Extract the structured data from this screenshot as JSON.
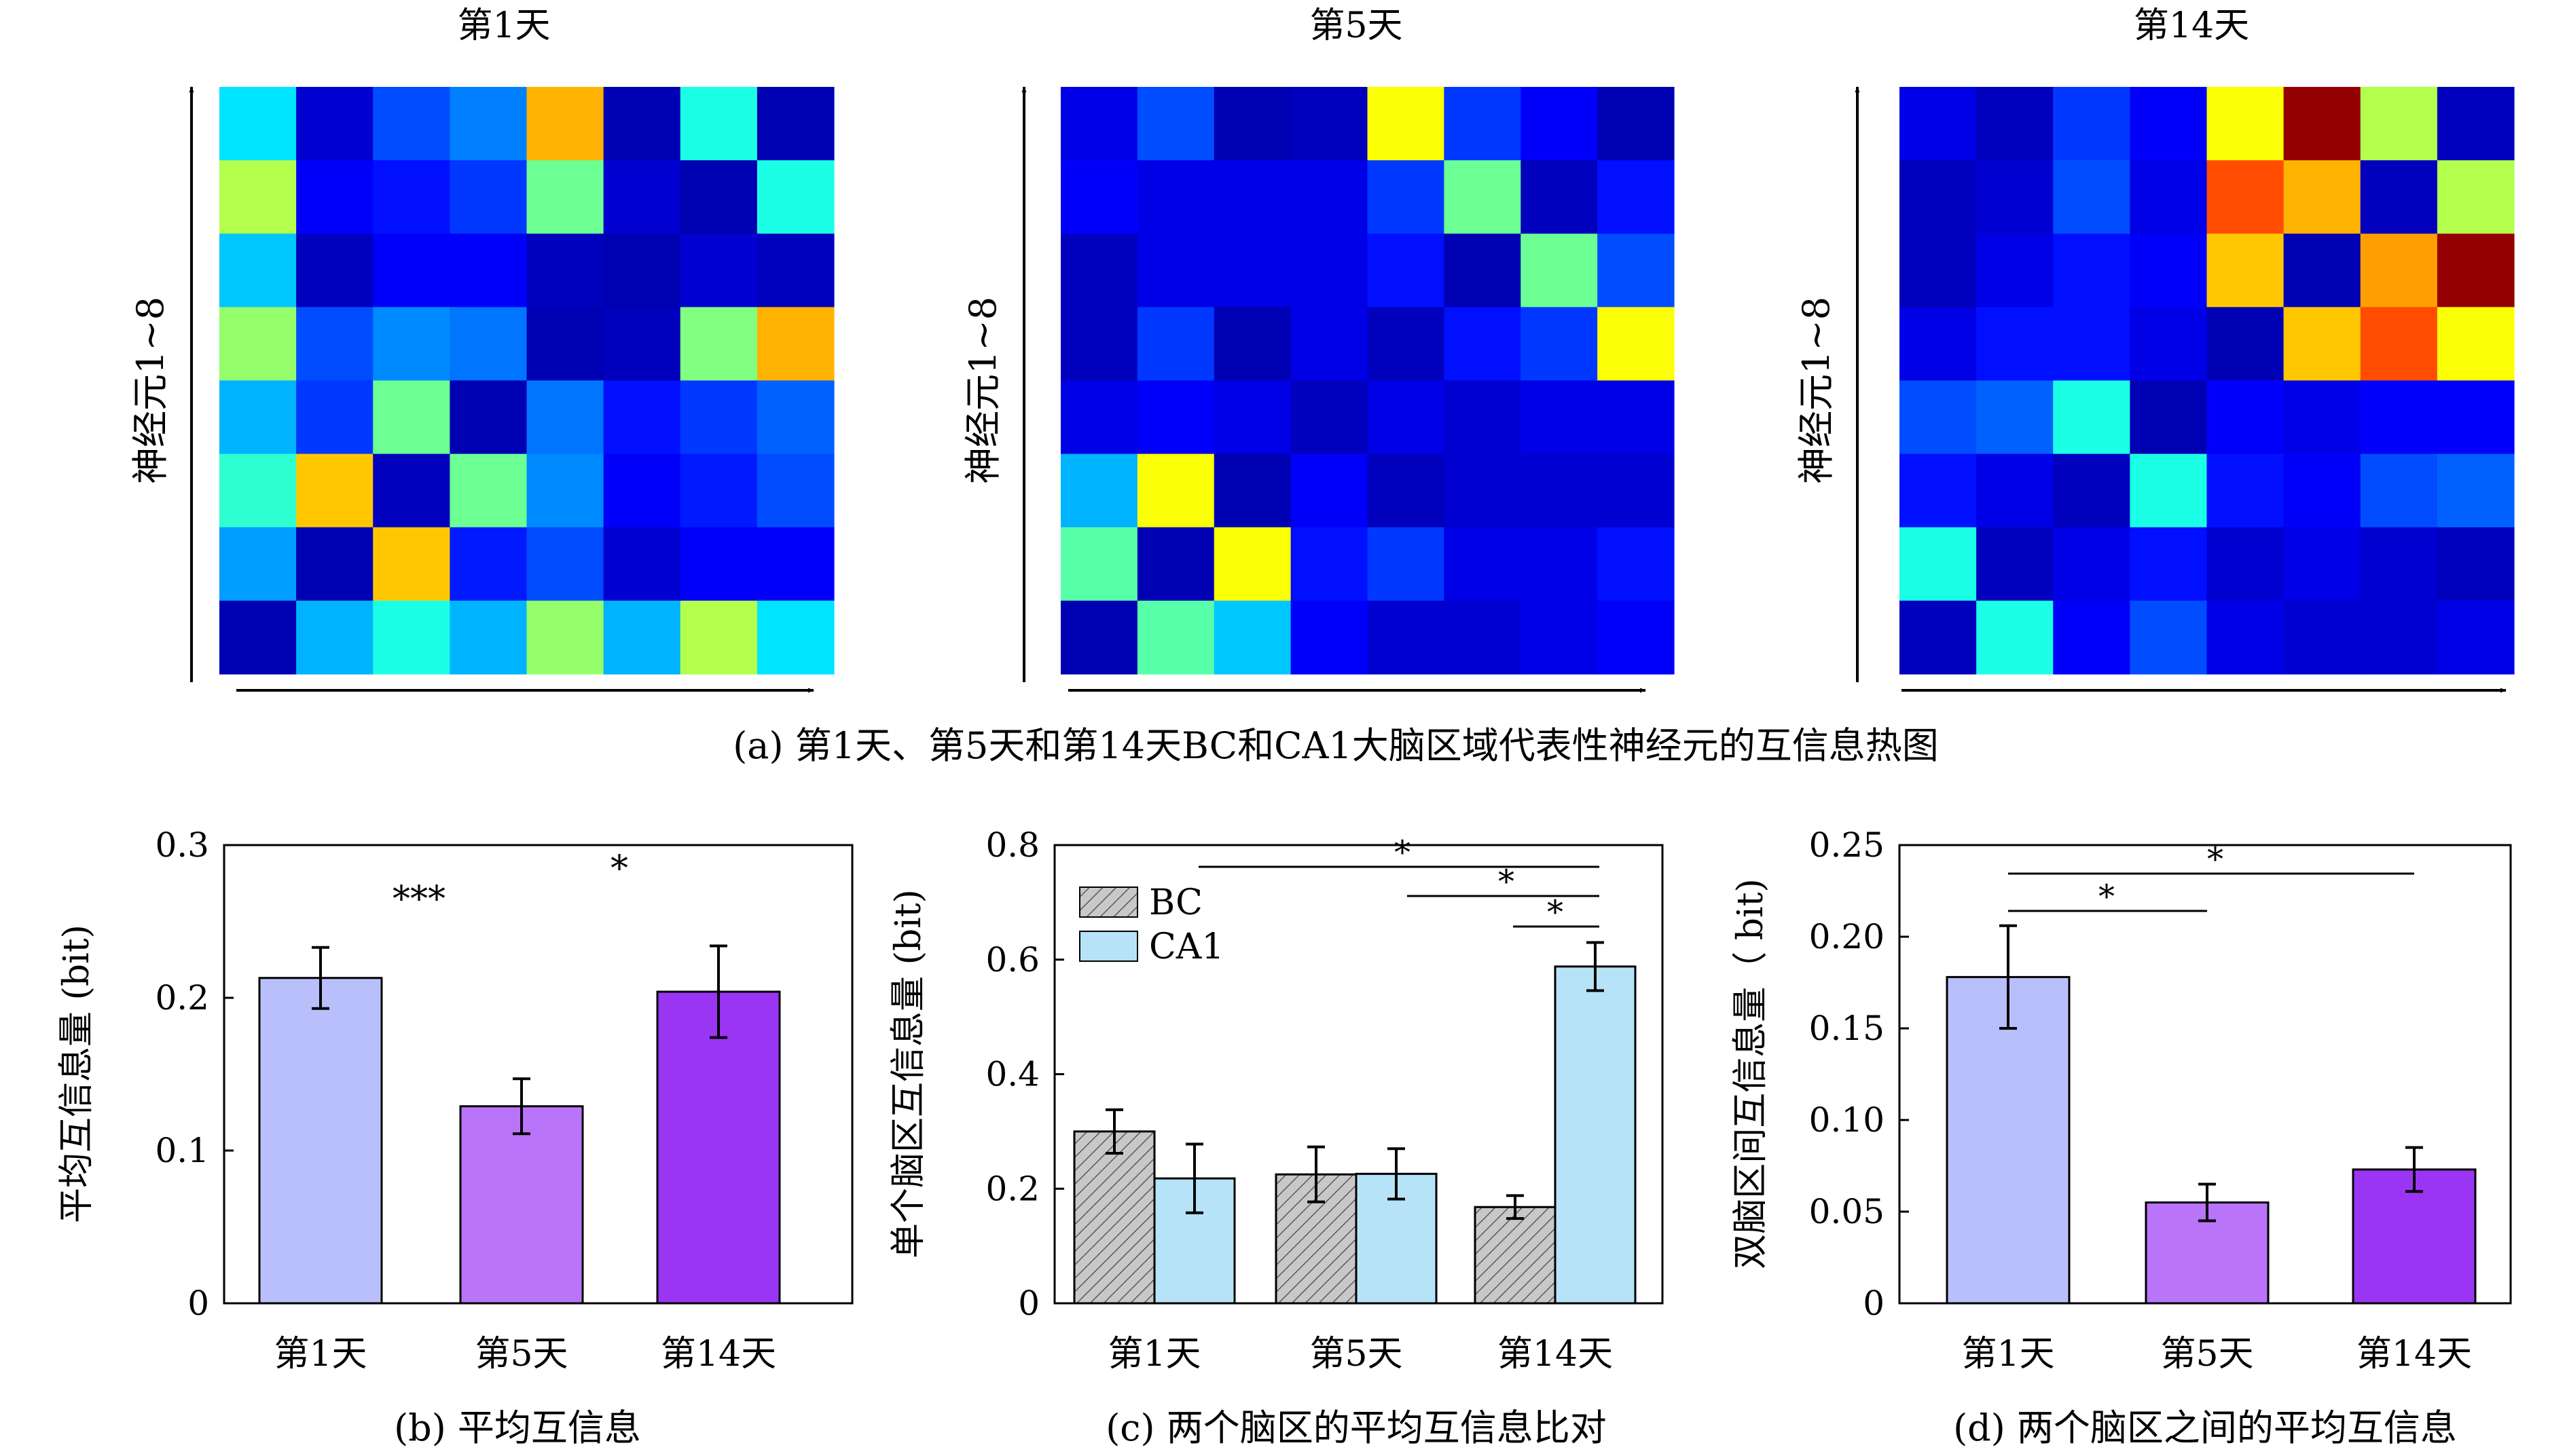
{
  "chart_data": [
    {
      "type": "heatmap",
      "title": "第1天",
      "ylabel": "神经元1~8",
      "colormap": "jet",
      "vmin": 0,
      "vmax": 1,
      "values": [
        [
          0.35,
          0.08,
          0.2,
          0.25,
          0.7,
          0.05,
          0.4,
          0.05
        ],
        [
          0.55,
          0.12,
          0.14,
          0.18,
          0.48,
          0.08,
          0.05,
          0.4
        ],
        [
          0.32,
          0.06,
          0.12,
          0.12,
          0.06,
          0.05,
          0.08,
          0.06
        ],
        [
          0.52,
          0.2,
          0.26,
          0.24,
          0.05,
          0.06,
          0.5,
          0.7
        ],
        [
          0.3,
          0.18,
          0.48,
          0.05,
          0.24,
          0.14,
          0.18,
          0.22
        ],
        [
          0.42,
          0.68,
          0.06,
          0.48,
          0.26,
          0.12,
          0.15,
          0.2
        ],
        [
          0.28,
          0.05,
          0.68,
          0.15,
          0.2,
          0.08,
          0.12,
          0.12
        ],
        [
          0.05,
          0.3,
          0.4,
          0.3,
          0.52,
          0.3,
          0.55,
          0.35
        ]
      ],
      "caption": "(a) 第1天、第5天和第14天BC和CA1大脑区域代表性神经元的互信息热图"
    },
    {
      "type": "heatmap",
      "title": "第5天",
      "ylabel": "神经元1~8",
      "colormap": "jet",
      "vmin": 0,
      "vmax": 1,
      "values": [
        [
          0.1,
          0.2,
          0.05,
          0.06,
          0.62,
          0.18,
          0.12,
          0.05
        ],
        [
          0.12,
          0.1,
          0.1,
          0.1,
          0.18,
          0.48,
          0.06,
          0.14
        ],
        [
          0.06,
          0.1,
          0.1,
          0.1,
          0.14,
          0.05,
          0.48,
          0.2
        ],
        [
          0.06,
          0.18,
          0.05,
          0.1,
          0.06,
          0.14,
          0.18,
          0.62
        ],
        [
          0.1,
          0.12,
          0.1,
          0.06,
          0.1,
          0.08,
          0.1,
          0.1
        ],
        [
          0.3,
          0.62,
          0.05,
          0.12,
          0.06,
          0.08,
          0.08,
          0.08
        ],
        [
          0.46,
          0.05,
          0.62,
          0.14,
          0.18,
          0.1,
          0.1,
          0.14
        ],
        [
          0.05,
          0.46,
          0.32,
          0.12,
          0.08,
          0.08,
          0.1,
          0.12
        ]
      ]
    },
    {
      "type": "heatmap",
      "title": "第14天",
      "ylabel": "神经元1~8",
      "colormap": "jet",
      "vmin": 0,
      "vmax": 1,
      "values": [
        [
          0.1,
          0.06,
          0.18,
          0.12,
          0.62,
          0.98,
          0.55,
          0.06
        ],
        [
          0.06,
          0.08,
          0.2,
          0.1,
          0.8,
          0.7,
          0.06,
          0.55
        ],
        [
          0.06,
          0.1,
          0.14,
          0.12,
          0.68,
          0.05,
          0.72,
          0.98
        ],
        [
          0.1,
          0.14,
          0.14,
          0.1,
          0.05,
          0.68,
          0.8,
          0.62
        ],
        [
          0.2,
          0.22,
          0.4,
          0.05,
          0.12,
          0.1,
          0.12,
          0.12
        ],
        [
          0.14,
          0.1,
          0.06,
          0.4,
          0.14,
          0.12,
          0.2,
          0.22
        ],
        [
          0.4,
          0.06,
          0.1,
          0.14,
          0.08,
          0.1,
          0.08,
          0.06
        ],
        [
          0.06,
          0.4,
          0.12,
          0.2,
          0.1,
          0.08,
          0.08,
          0.1
        ]
      ]
    },
    {
      "type": "bar",
      "categories": [
        "第1天",
        "第5天",
        "第14天"
      ],
      "values": [
        0.213,
        0.129,
        0.204
      ],
      "errors": [
        0.02,
        0.018,
        0.03
      ],
      "colors": [
        "#b9bffa",
        "#b974f9",
        "#9b35f4"
      ],
      "ylabel": "平均互信息量 (bit)",
      "ylim": [
        0,
        0.3
      ],
      "yticks": [
        "0",
        "0.1",
        "0.2",
        "0.3"
      ],
      "annotations": [
        "***",
        "*"
      ],
      "caption": "(b) 平均互信息"
    },
    {
      "type": "bar",
      "categories": [
        "第1天",
        "第5天",
        "第14天"
      ],
      "series": [
        {
          "name": "BC",
          "values": [
            0.3,
            0.225,
            0.168
          ],
          "errors": [
            0.038,
            0.048,
            0.02
          ],
          "color": "#c8c8c8"
        },
        {
          "name": "CA1",
          "values": [
            0.218,
            0.226,
            0.588
          ],
          "errors": [
            0.06,
            0.044,
            0.042
          ],
          "color": "#b6e3f7"
        }
      ],
      "ylabel": "单个脑区互信息量 (bit)",
      "ylim": [
        0,
        0.8
      ],
      "yticks": [
        "0",
        "0.2",
        "0.4",
        "0.6",
        "0.8"
      ],
      "annotations": [
        "*",
        "*",
        "*"
      ],
      "caption": "(c) 两个脑区的平均互信息比对"
    },
    {
      "type": "bar",
      "categories": [
        "第1天",
        "第5天",
        "第14天"
      ],
      "values": [
        0.178,
        0.055,
        0.073
      ],
      "errors": [
        0.028,
        0.01,
        0.012
      ],
      "colors": [
        "#b9bffa",
        "#b974f9",
        "#9b35f4"
      ],
      "ylabel": "双脑区间互信息量（ bit)",
      "ylim": [
        0,
        0.25
      ],
      "yticks": [
        "0",
        "0.05",
        "0.10",
        "0.15",
        "0.20",
        "0.25"
      ],
      "annotations": [
        "*",
        "*"
      ],
      "caption": "(d) 两个脑区之间的平均互信息"
    }
  ]
}
